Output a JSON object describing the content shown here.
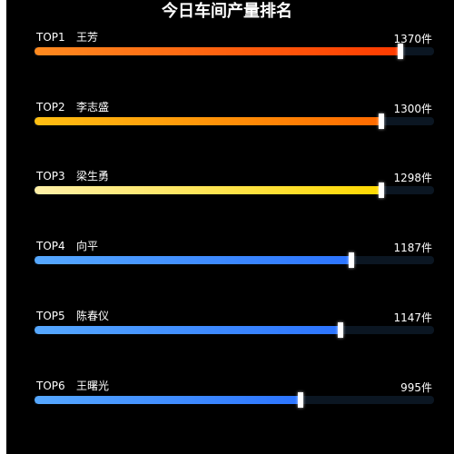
{
  "title": "今日车间产量排名",
  "chart_data": {
    "type": "bar",
    "orientation": "horizontal",
    "title": "今日车间产量排名",
    "unit": "件",
    "max": 1400,
    "items": [
      {
        "rank": "TOP1",
        "name": "王芳",
        "value": 1370,
        "value_label": "1370件",
        "color_from": "#ff8a1f",
        "color_to": "#ff3b00"
      },
      {
        "rank": "TOP2",
        "name": "李志盛",
        "value": 1300,
        "value_label": "1300件",
        "color_from": "#ffbf12",
        "color_to": "#ff6a00"
      },
      {
        "rank": "TOP3",
        "name": "梁生勇",
        "value": 1298,
        "value_label": "1298件",
        "color_from": "#fff0a8",
        "color_to": "#ffd900"
      },
      {
        "rank": "TOP4",
        "name": "向平",
        "value": 1187,
        "value_label": "1187件",
        "color_from": "#56a8ff",
        "color_to": "#2c74ff"
      },
      {
        "rank": "TOP5",
        "name": "陈春仪",
        "value": 1147,
        "value_label": "1147件",
        "color_from": "#56a8ff",
        "color_to": "#2c74ff"
      },
      {
        "rank": "TOP6",
        "name": "王曙光",
        "value": 995,
        "value_label": "995件",
        "color_from": "#56a8ff",
        "color_to": "#2c74ff"
      }
    ]
  }
}
